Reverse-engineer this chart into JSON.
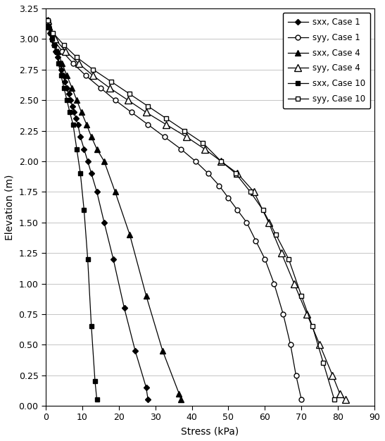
{
  "title": "",
  "xlabel": "Stress (kPa)",
  "ylabel": "Elevation (m)",
  "xlim": [
    0,
    90
  ],
  "ylim": [
    0,
    3.25
  ],
  "xticks": [
    0,
    10,
    20,
    30,
    40,
    50,
    60,
    70,
    80,
    90
  ],
  "yticks": [
    0,
    0.25,
    0.5,
    0.75,
    1.0,
    1.25,
    1.5,
    1.75,
    2.0,
    2.25,
    2.5,
    2.75,
    3.0,
    3.25
  ],
  "series": [
    {
      "label": "sxx, Case 1",
      "marker": "D",
      "markerfacecolor": "#000000",
      "markeredgecolor": "#000000",
      "markersize": 4,
      "stress": [
        0.3,
        0.7,
        1.2,
        1.8,
        2.3,
        2.8,
        3.3,
        3.8,
        4.3,
        4.8,
        5.3,
        5.8,
        6.3,
        6.8,
        7.3,
        7.8,
        8.3,
        8.8,
        9.5,
        10.5,
        11.5,
        12.5,
        14.0,
        16.0,
        18.5,
        21.5,
        24.5,
        27.5,
        28.0
      ],
      "elevation": [
        3.15,
        3.1,
        3.05,
        3.0,
        2.95,
        2.9,
        2.85,
        2.8,
        2.75,
        2.7,
        2.65,
        2.6,
        2.55,
        2.5,
        2.45,
        2.4,
        2.35,
        2.3,
        2.2,
        2.1,
        2.0,
        1.9,
        1.75,
        1.5,
        1.2,
        0.8,
        0.45,
        0.15,
        0.05
      ]
    },
    {
      "label": "syy, Case 1",
      "marker": "o",
      "markerfacecolor": "#ffffff",
      "markeredgecolor": "#000000",
      "markersize": 5,
      "stress": [
        0.5,
        2.0,
        4.5,
        7.5,
        11.0,
        15.0,
        19.0,
        23.5,
        28.0,
        32.5,
        37.0,
        41.0,
        44.5,
        47.5,
        50.0,
        52.5,
        55.0,
        57.5,
        60.0,
        62.5,
        65.0,
        67.0,
        68.5,
        70.0
      ],
      "elevation": [
        3.15,
        3.0,
        2.9,
        2.8,
        2.7,
        2.6,
        2.5,
        2.4,
        2.3,
        2.2,
        2.1,
        2.0,
        1.9,
        1.8,
        1.7,
        1.6,
        1.5,
        1.35,
        1.2,
        1.0,
        0.75,
        0.5,
        0.25,
        0.05
      ]
    },
    {
      "label": "sxx, Case 4",
      "marker": "^",
      "markerfacecolor": "#000000",
      "markeredgecolor": "#000000",
      "markersize": 6,
      "stress": [
        0.5,
        1.0,
        2.0,
        3.2,
        4.5,
        5.8,
        7.2,
        8.5,
        9.8,
        11.2,
        12.5,
        14.0,
        16.0,
        19.0,
        23.0,
        27.5,
        32.0,
        36.5,
        37.0
      ],
      "elevation": [
        3.15,
        3.1,
        3.0,
        2.9,
        2.8,
        2.7,
        2.6,
        2.5,
        2.4,
        2.3,
        2.2,
        2.1,
        2.0,
        1.75,
        1.4,
        0.9,
        0.45,
        0.1,
        0.05
      ]
    },
    {
      "label": "syy, Case 4",
      "marker": "^",
      "markerfacecolor": "#ffffff",
      "markeredgecolor": "#000000",
      "markersize": 7,
      "stress": [
        0.5,
        2.5,
        5.5,
        9.0,
        13.0,
        17.5,
        22.5,
        27.5,
        33.0,
        38.5,
        43.5,
        48.0,
        52.5,
        57.0,
        61.0,
        64.5,
        68.0,
        71.5,
        75.0,
        78.5,
        80.5,
        82.0
      ],
      "elevation": [
        3.15,
        3.0,
        2.9,
        2.8,
        2.7,
        2.6,
        2.5,
        2.4,
        2.3,
        2.2,
        2.1,
        2.0,
        1.9,
        1.75,
        1.5,
        1.25,
        1.0,
        0.75,
        0.5,
        0.25,
        0.1,
        0.05
      ]
    },
    {
      "label": "sxx, Case 10",
      "marker": "s",
      "markerfacecolor": "#000000",
      "markeredgecolor": "#000000",
      "markersize": 5,
      "stress": [
        0.3,
        0.8,
        1.3,
        1.8,
        2.3,
        2.9,
        3.5,
        4.2,
        5.0,
        5.8,
        6.6,
        7.5,
        8.5,
        9.5,
        10.5,
        11.5,
        12.5,
        13.5,
        14.0
      ],
      "elevation": [
        3.15,
        3.1,
        3.05,
        3.0,
        2.95,
        2.9,
        2.8,
        2.7,
        2.6,
        2.5,
        2.4,
        2.3,
        2.1,
        1.9,
        1.6,
        1.2,
        0.65,
        0.2,
        0.05
      ]
    },
    {
      "label": "syy, Case 10",
      "marker": "s",
      "markerfacecolor": "#ffffff",
      "markeredgecolor": "#000000",
      "markersize": 5,
      "stress": [
        0.5,
        2.0,
        5.0,
        8.5,
        13.0,
        18.0,
        23.0,
        28.0,
        33.0,
        38.0,
        43.0,
        48.0,
        52.0,
        56.0,
        59.5,
        63.0,
        66.5,
        70.0,
        73.0,
        76.0,
        79.0
      ],
      "elevation": [
        3.15,
        3.05,
        2.95,
        2.85,
        2.75,
        2.65,
        2.55,
        2.45,
        2.35,
        2.25,
        2.15,
        2.0,
        1.9,
        1.75,
        1.6,
        1.4,
        1.2,
        0.9,
        0.65,
        0.35,
        0.05
      ]
    }
  ],
  "background_color": "#ffffff",
  "grid_color": "#bbbbbb"
}
